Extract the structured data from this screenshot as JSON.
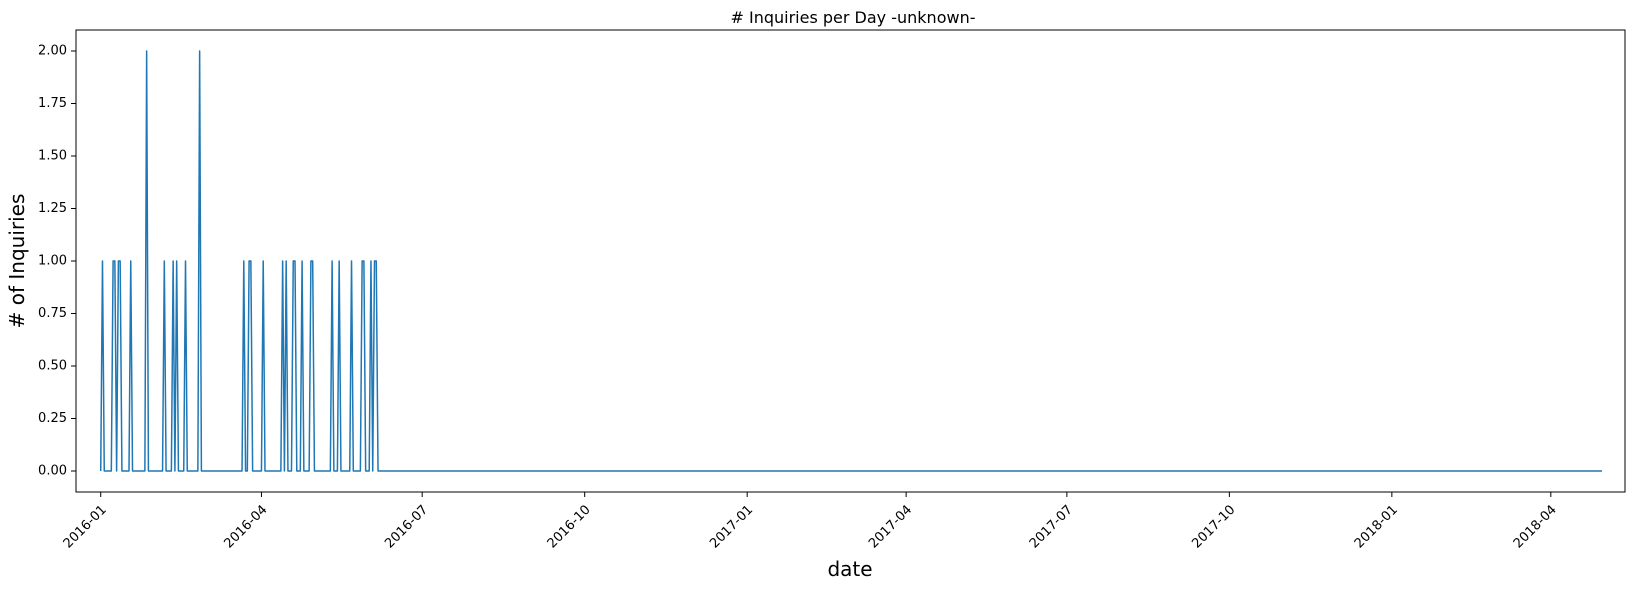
{
  "chart_data": {
    "type": "line",
    "title": "# Inquiries per Day -unknown-",
    "xlabel": "date",
    "ylabel": "# of Inquiries",
    "xlim": [
      "2015-12-18",
      "2018-05-13"
    ],
    "ylim": [
      -0.1,
      2.1
    ],
    "grid": false,
    "x_ticks": [
      "2016-01",
      "2016-04",
      "2016-07",
      "2016-10",
      "2017-01",
      "2017-04",
      "2017-07",
      "2017-10",
      "2018-01",
      "2018-04"
    ],
    "y_ticks": [
      "0.00",
      "0.25",
      "0.50",
      "0.75",
      "1.00",
      "1.25",
      "1.50",
      "1.75",
      "2.00"
    ],
    "series": [
      {
        "color": "#1f77b4",
        "start": "2016-01-01",
        "end": "2018-04-30",
        "default_value": 0,
        "points": [
          {
            "date": "2016-01-02",
            "value": 1
          },
          {
            "date": "2016-01-08",
            "value": 1
          },
          {
            "date": "2016-01-09",
            "value": 1
          },
          {
            "date": "2016-01-11",
            "value": 1
          },
          {
            "date": "2016-01-12",
            "value": 1
          },
          {
            "date": "2016-01-18",
            "value": 1
          },
          {
            "date": "2016-01-27",
            "value": 2
          },
          {
            "date": "2016-02-06",
            "value": 1
          },
          {
            "date": "2016-02-11",
            "value": 1
          },
          {
            "date": "2016-02-13",
            "value": 1
          },
          {
            "date": "2016-02-18",
            "value": 1
          },
          {
            "date": "2016-02-26",
            "value": 2
          },
          {
            "date": "2016-03-22",
            "value": 1
          },
          {
            "date": "2016-03-25",
            "value": 1
          },
          {
            "date": "2016-03-26",
            "value": 1
          },
          {
            "date": "2016-04-02",
            "value": 1
          },
          {
            "date": "2016-04-13",
            "value": 1
          },
          {
            "date": "2016-04-15",
            "value": 1
          },
          {
            "date": "2016-04-19",
            "value": 1
          },
          {
            "date": "2016-04-20",
            "value": 1
          },
          {
            "date": "2016-04-24",
            "value": 1
          },
          {
            "date": "2016-04-29",
            "value": 1
          },
          {
            "date": "2016-04-30",
            "value": 1
          },
          {
            "date": "2016-05-11",
            "value": 1
          },
          {
            "date": "2016-05-15",
            "value": 1
          },
          {
            "date": "2016-05-22",
            "value": 1
          },
          {
            "date": "2016-05-28",
            "value": 1
          },
          {
            "date": "2016-05-29",
            "value": 1
          },
          {
            "date": "2016-06-02",
            "value": 1
          },
          {
            "date": "2016-06-04",
            "value": 1
          },
          {
            "date": "2016-06-05",
            "value": 1
          }
        ]
      }
    ]
  }
}
